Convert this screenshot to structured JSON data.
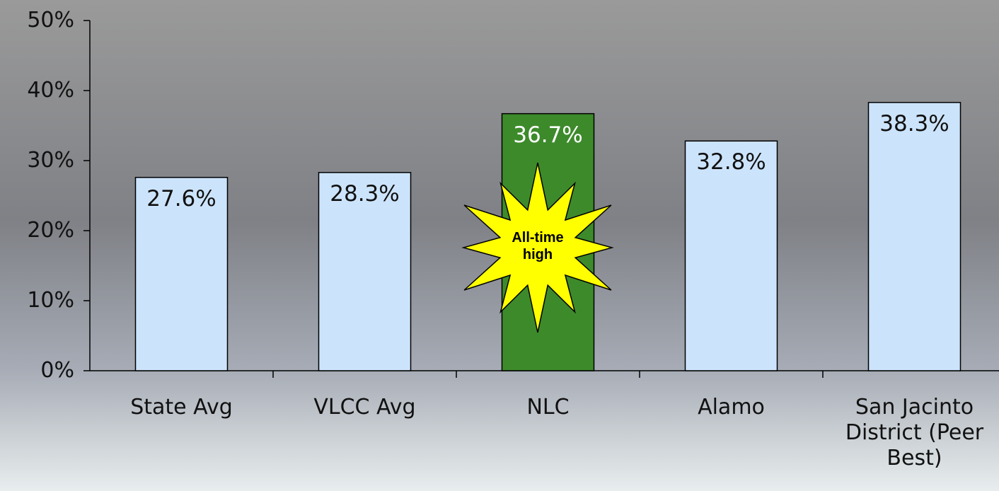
{
  "chart_data": {
    "type": "bar",
    "categories": [
      "State Avg",
      "VLCC Avg",
      "NLC",
      "Alamo",
      "San Jacinto District (Peer Best)"
    ],
    "values": [
      27.6,
      28.3,
      36.7,
      32.8,
      38.3
    ],
    "value_labels": [
      "27.6%",
      "28.3%",
      "36.7%",
      "32.8%",
      "38.3%"
    ],
    "colors": [
      "#cce4fb",
      "#cce4fb",
      "#3d8a2b",
      "#cce4fb",
      "#cce4fb"
    ],
    "ylim": [
      0,
      50
    ],
    "yticks": [
      {
        "value": 0,
        "label": "0%"
      },
      {
        "value": 10,
        "label": "10%"
      },
      {
        "value": 20,
        "label": "20%"
      },
      {
        "value": 30,
        "label": "30%"
      },
      {
        "value": 40,
        "label": "40%"
      },
      {
        "value": 50,
        "label": "50%"
      }
    ],
    "annotation": "All-time high"
  }
}
